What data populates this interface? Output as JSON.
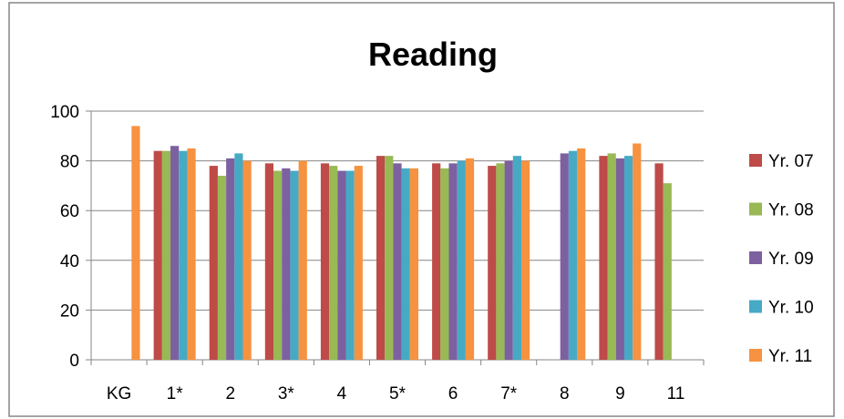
{
  "chart_data": {
    "type": "bar",
    "title": "Reading",
    "xlabel": "",
    "ylabel": "",
    "ylim": [
      0,
      100
    ],
    "yticks": [
      0,
      20,
      40,
      60,
      80,
      100
    ],
    "grid": true,
    "legend_position": "right",
    "categories": [
      "KG",
      "1*",
      "2",
      "3*",
      "4",
      "5*",
      "6",
      "7*",
      "8",
      "9",
      "11"
    ],
    "series": [
      {
        "name": "Yr. 07",
        "color": "#be4b48",
        "values": [
          null,
          84,
          78,
          79,
          79,
          82,
          79,
          78,
          null,
          82,
          79
        ]
      },
      {
        "name": "Yr. 08",
        "color": "#98b954",
        "values": [
          null,
          84,
          74,
          76,
          78,
          82,
          77,
          79,
          null,
          83,
          71
        ]
      },
      {
        "name": "Yr. 09",
        "color": "#7d60a0",
        "values": [
          null,
          86,
          81,
          77,
          76,
          79,
          79,
          80,
          83,
          81,
          null
        ]
      },
      {
        "name": "Yr. 10",
        "color": "#46aac5",
        "values": [
          null,
          84,
          83,
          76,
          76,
          77,
          80,
          82,
          84,
          82,
          null
        ]
      },
      {
        "name": "Yr. 11",
        "color": "#f69240",
        "values": [
          94,
          85,
          80,
          80,
          78,
          77,
          81,
          80,
          85,
          87,
          null
        ]
      }
    ]
  }
}
